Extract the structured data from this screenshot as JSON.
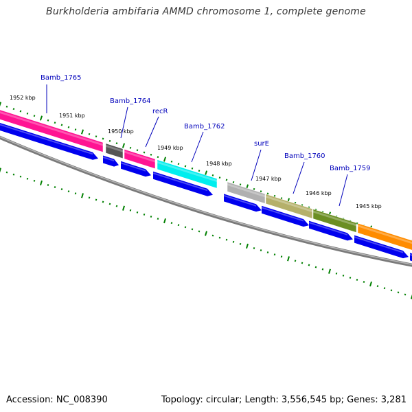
{
  "title": "Burkholderia ambifaria AMMD chromosome 1, complete genome",
  "accession": "Accession: NC_008390",
  "stats": "Topology: circular; Length: 3,556,545 bp; Genes: 3,281",
  "colors": {
    "backbone": "#888888",
    "cds": "#0000ee",
    "tick": "#008000",
    "label": "#0000bb"
  },
  "kbp_labels": [
    "1952 kbp",
    "1951 kbp",
    "1950 kbp",
    "1949 kbp",
    "1948 kbp",
    "1947 kbp",
    "1946 kbp",
    "1945 kbp"
  ],
  "genes": [
    {
      "name": "Bamb_1765",
      "color": "#ff1493"
    },
    {
      "name": "Bamb_1764",
      "color": "#555555"
    },
    {
      "name": "recR",
      "color": "#ff1493"
    },
    {
      "name": "Bamb_1762",
      "color": "#00eeee"
    },
    {
      "name": "surE",
      "color": "#b0b0b0"
    },
    {
      "name": "Bamb_1760",
      "color": "#b5b06a"
    },
    {
      "name": "Bamb_1759",
      "color": "#6b8e23"
    },
    {
      "name": "",
      "color": "#ff8c00"
    }
  ]
}
